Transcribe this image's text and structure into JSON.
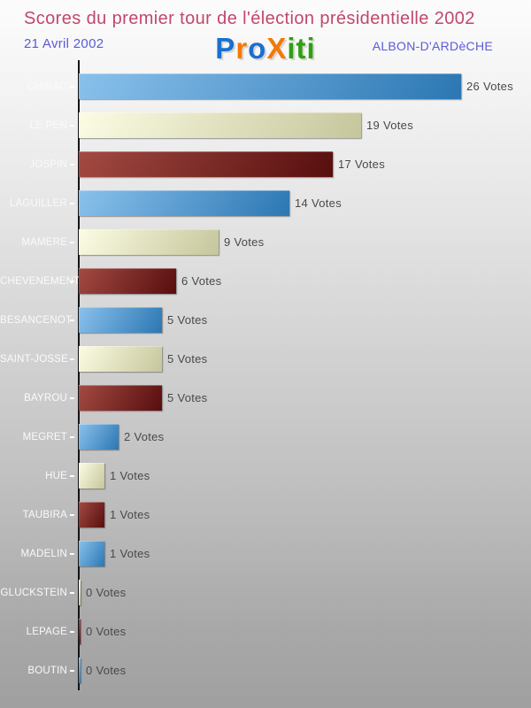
{
  "header": {
    "title": "Scores du premier tour de l'élection présidentielle 2002",
    "title_color": "#c2476b",
    "date": "21 Avril 2002",
    "location": "ALBON-D'ARDèCHE",
    "accent_color": "#5b5bd8"
  },
  "logo": {
    "name": "Proxiti",
    "letters": [
      {
        "ch": "P",
        "color": "#1a6fd0"
      },
      {
        "ch": "r",
        "color": "#f57900"
      },
      {
        "ch": "o",
        "color": "#1a6fd0"
      },
      {
        "ch": "X",
        "color": "#f57900"
      },
      {
        "ch": "i",
        "color": "#2ea011"
      },
      {
        "ch": "t",
        "color": "#2ea011"
      },
      {
        "ch": "i",
        "color": "#2ea011"
      }
    ]
  },
  "chart_data": {
    "type": "bar",
    "orientation": "horizontal",
    "title": "Scores du premier tour de l'élection présidentielle 2002",
    "unit_label": "Votes",
    "categories": [
      "CHIRAC",
      "LE PEN",
      "JOSPIN",
      "LAGUILLER",
      "MAMERE",
      "CHEVENEMENT",
      "BESANCENOT",
      "SAINT-JOSSE",
      "BAYROU",
      "MEGRET",
      "HUE",
      "TAUBIRA",
      "MADELIN",
      "GLUCKSTEIN",
      "LEPAGE",
      "BOUTIN"
    ],
    "values": [
      26,
      19,
      17,
      14,
      9,
      6,
      5,
      5,
      5,
      2,
      1,
      1,
      1,
      0,
      0,
      0
    ],
    "value_labels": [
      "26 Votes",
      "19 Votes",
      "17 Votes",
      "14 Votes",
      "9 Votes",
      "6 Votes",
      "5 Votes",
      "5 Votes",
      "5 Votes",
      "2 Votes",
      "1 Votes",
      "1 Votes",
      "1 Votes",
      "0 Votes",
      "0 Votes",
      "0 Votes"
    ],
    "xlim": [
      0,
      26
    ],
    "grid": false,
    "legend": false,
    "axis_color": "#141414",
    "label_color": "#fafafa",
    "value_color": "#494949",
    "bar_color_cycle": [
      "blue",
      "cream",
      "darkred"
    ],
    "palette": {
      "blue": [
        "#8ac1ec",
        "#2b77b3"
      ],
      "cream": [
        "#fcfce4",
        "#c6c69c"
      ],
      "darkred": [
        "#a34a42",
        "#570e0e"
      ]
    }
  }
}
